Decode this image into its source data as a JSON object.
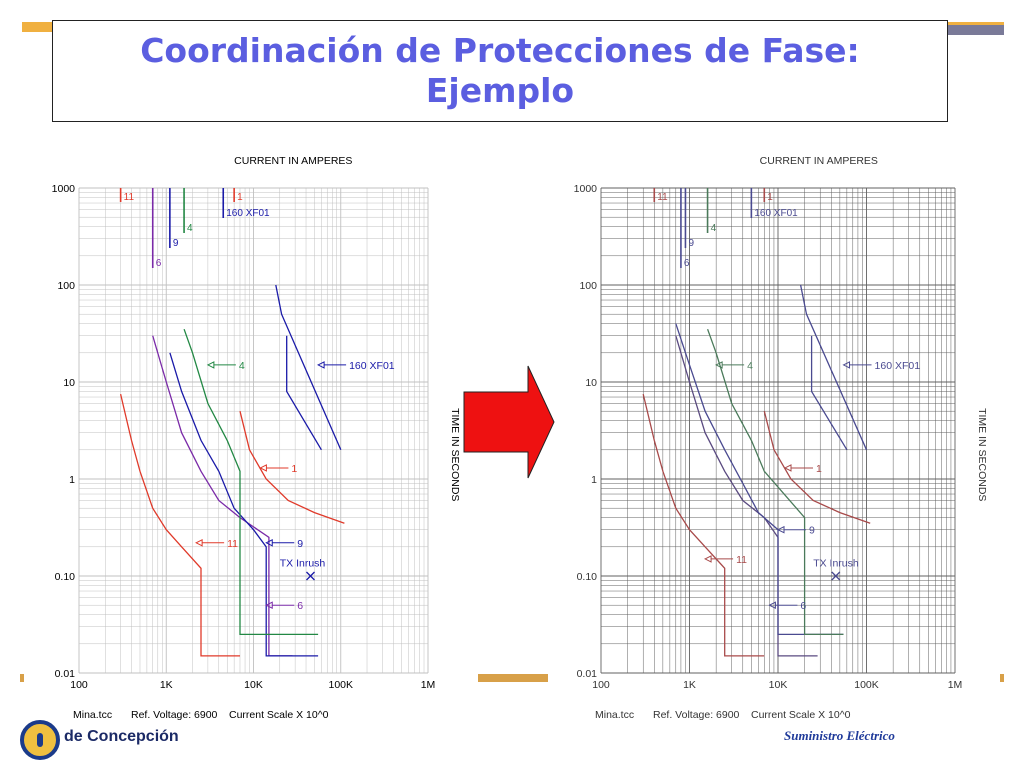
{
  "slide": {
    "title": "Coordinación de Protecciones de Fase: Ejemplo",
    "title_color": "#5b5ee0",
    "left_logo_text": "de Concepción",
    "right_logo_text": "Suministro Eléctrico",
    "arrow_color": "#ee1111"
  },
  "chart_data": [
    {
      "type": "line",
      "x_scale": "log",
      "y_scale": "log",
      "xlim": [
        100,
        1000000
      ],
      "ylim": [
        0.01,
        1000
      ],
      "xlabel": "CURRENT IN AMPERES",
      "ylabel": "TIME IN SECONDS",
      "x_ticks": [
        "100",
        "1K",
        "10K",
        "100K",
        "1M"
      ],
      "y_ticks": [
        "0.01",
        "0.10",
        "1",
        "10",
        "100",
        "1000"
      ],
      "footer": [
        "Mina.tcc",
        "Ref. Voltage: 6900",
        "Current Scale X 10^0"
      ],
      "grid": true,
      "series": [
        {
          "name": "11",
          "color": "#e03a2a",
          "points": [
            [
              300,
              7.5
            ],
            [
              400,
              2.5
            ],
            [
              500,
              1.2
            ],
            [
              700,
              0.5
            ],
            [
              1000,
              0.3
            ],
            [
              1500,
              0.2
            ],
            [
              2500,
              0.12
            ],
            [
              2500,
              0.015
            ],
            [
              7000,
              0.015
            ]
          ]
        },
        {
          "name": "6",
          "color": "#7a2aa8",
          "points": [
            [
              700,
              30
            ],
            [
              1000,
              10
            ],
            [
              1500,
              3
            ],
            [
              2500,
              1.2
            ],
            [
              4000,
              0.6
            ],
            [
              7000,
              0.4
            ],
            [
              15000,
              0.25
            ],
            [
              15000,
              0.015
            ],
            [
              28000,
              0.015
            ]
          ]
        },
        {
          "name": "9",
          "color": "#1a1aa8",
          "points": [
            [
              1100,
              20
            ],
            [
              1500,
              8
            ],
            [
              2500,
              2.5
            ],
            [
              4000,
              1.2
            ],
            [
              6000,
              0.5
            ],
            [
              10000,
              0.3
            ],
            [
              14000,
              0.2
            ],
            [
              14000,
              0.015
            ],
            [
              55000,
              0.015
            ]
          ]
        },
        {
          "name": "4",
          "color": "#228844",
          "points": [
            [
              1600,
              35
            ],
            [
              2000,
              20
            ],
            [
              3000,
              6
            ],
            [
              5000,
              2.5
            ],
            [
              7000,
              1.2
            ],
            [
              7000,
              0.025
            ],
            [
              55000,
              0.025
            ]
          ]
        },
        {
          "name": "1",
          "color": "#e03a2a",
          "points": [
            [
              7000,
              5
            ],
            [
              9000,
              2
            ],
            [
              14000,
              1
            ],
            [
              25000,
              0.6
            ],
            [
              50000,
              0.45
            ],
            [
              110000,
              0.35
            ]
          ]
        },
        {
          "name": "160 XF01",
          "color": "#1a1aa8",
          "segments": [
            [
              [
                18000,
                100
              ],
              [
                21000,
                50
              ],
              [
                100000,
                2
              ]
            ],
            [
              [
                24000,
                30
              ],
              [
                24000,
                8
              ],
              [
                60000,
                2
              ]
            ]
          ]
        }
      ],
      "annotations": [
        {
          "text": "11",
          "color": "#e03a2a",
          "x": 2200,
          "y": 0.22,
          "arrow": true
        },
        {
          "text": "4",
          "color": "#228844",
          "x": 3000,
          "y": 15,
          "arrow": true
        },
        {
          "text": "160 XF01",
          "color": "#1a1aa8",
          "x": 55000,
          "y": 15,
          "arrow": true
        },
        {
          "text": "1",
          "color": "#e03a2a",
          "x": 12000,
          "y": 1.3,
          "arrow": true
        },
        {
          "text": "9",
          "color": "#1a1aa8",
          "x": 14000,
          "y": 0.22,
          "arrow": true
        },
        {
          "text": "6",
          "color": "#7a2aa8",
          "x": 14000,
          "y": 0.05,
          "arrow": true
        },
        {
          "text": "TX Inrush",
          "color": "#1a1aa8",
          "x": 45000,
          "y": 0.1,
          "marker": "x",
          "label_x": 20000,
          "label_y": 0.125
        }
      ],
      "top_markers": [
        {
          "text": "11",
          "color": "#e03a2a",
          "x": 300
        },
        {
          "text": "1",
          "color": "#e03a2a",
          "x": 6000
        },
        {
          "text": "160 XF01",
          "color": "#1a1aa8",
          "x": 4500
        },
        {
          "text": "4",
          "color": "#228844",
          "x": 1600
        },
        {
          "text": "9",
          "color": "#1a1aa8",
          "x": 1100
        },
        {
          "text": "6",
          "color": "#7a2aa8",
          "x": 700
        }
      ]
    },
    {
      "type": "line",
      "x_scale": "log",
      "y_scale": "log",
      "xlim": [
        100,
        1000000
      ],
      "ylim": [
        0.01,
        1000
      ],
      "xlabel": "CURRENT IN AMPERES",
      "ylabel": "TIME IN SECONDS",
      "x_ticks": [
        "100",
        "1K",
        "10K",
        "100K",
        "1M"
      ],
      "y_ticks": [
        "0.01",
        "0.10",
        "1",
        "10",
        "100",
        "1000"
      ],
      "footer": [
        "Mina.tcc",
        "Ref. Voltage: 6900",
        "Current Scale X 10^0"
      ],
      "grid": true,
      "series": [
        {
          "name": "11",
          "color": "#a84a4a",
          "points": [
            [
              300,
              7.5
            ],
            [
              400,
              2.5
            ],
            [
              500,
              1.2
            ],
            [
              700,
              0.5
            ],
            [
              1000,
              0.3
            ],
            [
              1500,
              0.2
            ],
            [
              2500,
              0.12
            ],
            [
              2500,
              0.015
            ],
            [
              7000,
              0.015
            ]
          ]
        },
        {
          "name": "6",
          "color": "#5a4a80",
          "points": [
            [
              700,
              30
            ],
            [
              1000,
              10
            ],
            [
              1500,
              3
            ],
            [
              2500,
              1.2
            ],
            [
              4000,
              0.6
            ],
            [
              7000,
              0.4
            ],
            [
              10000,
              0.25
            ],
            [
              10000,
              0.015
            ],
            [
              28000,
              0.015
            ]
          ]
        },
        {
          "name": "9",
          "color": "#4a4a90",
          "points": [
            [
              700,
              40
            ],
            [
              1000,
              15
            ],
            [
              1500,
              5
            ],
            [
              2500,
              2
            ],
            [
              4000,
              0.9
            ],
            [
              6000,
              0.45
            ],
            [
              10000,
              0.3
            ],
            [
              10000,
              0.025
            ],
            [
              55000,
              0.025
            ]
          ]
        },
        {
          "name": "4",
          "color": "#4a7a5a",
          "points": [
            [
              1600,
              35
            ],
            [
              2000,
              20
            ],
            [
              3000,
              6
            ],
            [
              5000,
              2.5
            ],
            [
              7000,
              1.2
            ],
            [
              20000,
              0.4
            ],
            [
              20000,
              0.025
            ],
            [
              55000,
              0.025
            ]
          ]
        },
        {
          "name": "1",
          "color": "#a84a4a",
          "points": [
            [
              7000,
              5
            ],
            [
              9000,
              2
            ],
            [
              14000,
              1
            ],
            [
              25000,
              0.6
            ],
            [
              50000,
              0.45
            ],
            [
              110000,
              0.35
            ]
          ]
        },
        {
          "name": "160 XF01",
          "color": "#4a4a90",
          "segments": [
            [
              [
                18000,
                100
              ],
              [
                21000,
                50
              ],
              [
                100000,
                2
              ]
            ],
            [
              [
                24000,
                30
              ],
              [
                24000,
                8
              ],
              [
                60000,
                2
              ]
            ]
          ]
        }
      ],
      "annotations": [
        {
          "text": "11",
          "color": "#a84a4a",
          "x": 1500,
          "y": 0.15,
          "arrow": true
        },
        {
          "text": "4",
          "color": "#4a7a5a",
          "x": 2000,
          "y": 15,
          "arrow": true
        },
        {
          "text": "160 XF01",
          "color": "#4a4a90",
          "x": 55000,
          "y": 15,
          "arrow": true
        },
        {
          "text": "1",
          "color": "#a84a4a",
          "x": 12000,
          "y": 1.3,
          "arrow": true
        },
        {
          "text": "9",
          "color": "#4a4a90",
          "x": 10000,
          "y": 0.3,
          "arrow": true
        },
        {
          "text": "6",
          "color": "#4a4a90",
          "x": 8000,
          "y": 0.05,
          "arrow": true
        },
        {
          "text": "TX Inrush",
          "color": "#4a4a90",
          "x": 45000,
          "y": 0.1,
          "marker": "x",
          "label_x": 25000,
          "label_y": 0.125
        }
      ],
      "top_markers": [
        {
          "text": "11",
          "color": "#a84a4a",
          "x": 400
        },
        {
          "text": "1",
          "color": "#a84a4a",
          "x": 7000
        },
        {
          "text": "160 XF01",
          "color": "#4a4a90",
          "x": 5000
        },
        {
          "text": "4",
          "color": "#4a7a5a",
          "x": 1600
        },
        {
          "text": "9",
          "color": "#4a4a90",
          "x": 900
        },
        {
          "text": "6",
          "color": "#4a4a90",
          "x": 800
        }
      ]
    }
  ]
}
